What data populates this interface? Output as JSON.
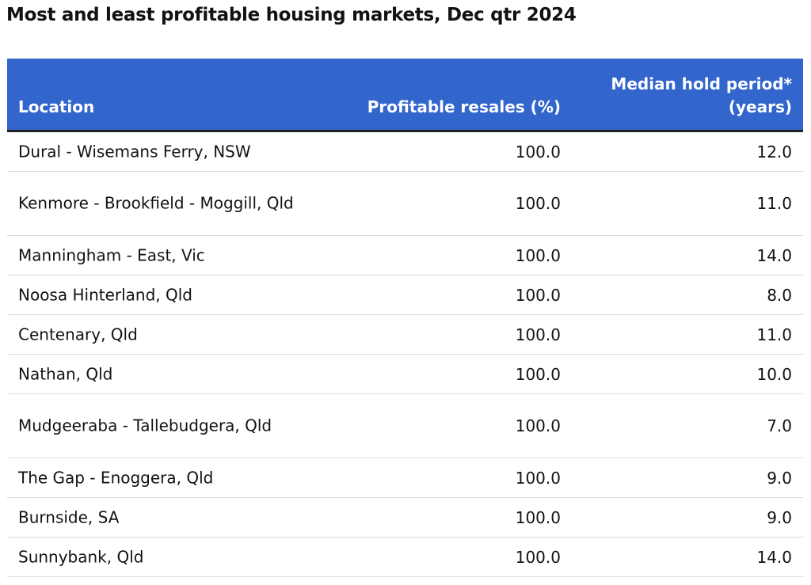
{
  "chart_data": {
    "type": "table",
    "title": "Most and least profitable housing markets, Dec qtr 2024",
    "columns": [
      "Location",
      "Profitable resales (%)",
      "Median hold period* (years)"
    ],
    "column_header_lines": {
      "location": "Location",
      "profitable": "Profitable resales (%)",
      "hold_line1": "Median hold period*",
      "hold_line2": "(years)"
    },
    "rows": [
      {
        "location": "Dural - Wisemans Ferry, NSW",
        "profitable": "100.0",
        "hold": "12.0"
      },
      {
        "location": "Kenmore - Brookfield - Moggill, Qld",
        "profitable": "100.0",
        "hold": "11.0"
      },
      {
        "location": "Manningham - East, Vic",
        "profitable": "100.0",
        "hold": "14.0"
      },
      {
        "location": "Noosa Hinterland, Qld",
        "profitable": "100.0",
        "hold": "8.0"
      },
      {
        "location": "Centenary, Qld",
        "profitable": "100.0",
        "hold": "11.0"
      },
      {
        "location": "Nathan, Qld",
        "profitable": "100.0",
        "hold": "10.0"
      },
      {
        "location": "Mudgeeraba - Tallebudgera, Qld",
        "profitable": "100.0",
        "hold": "7.0"
      },
      {
        "location": "The Gap - Enoggera, Qld",
        "profitable": "100.0",
        "hold": "9.0"
      },
      {
        "location": "Burnside, SA",
        "profitable": "100.0",
        "hold": "9.0"
      },
      {
        "location": "Sunnybank, Qld",
        "profitable": "100.0",
        "hold": "14.0"
      }
    ]
  },
  "colors": {
    "header_bg": "#3366cc",
    "header_text": "#ffffff",
    "row_divider": "#dcdcdc",
    "text": "#121212"
  }
}
